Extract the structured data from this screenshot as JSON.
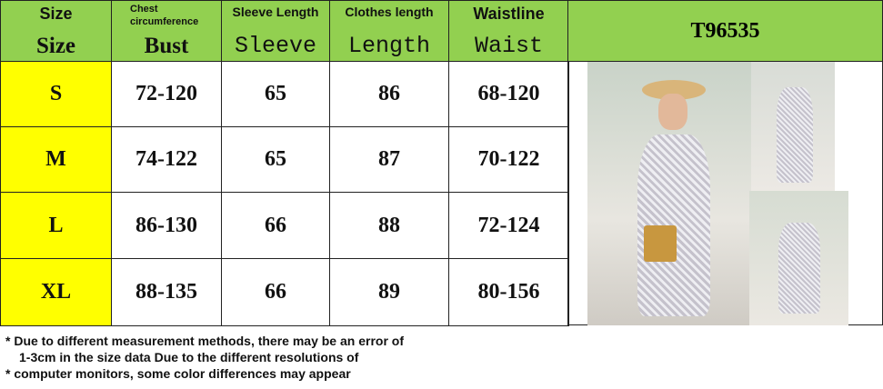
{
  "header": {
    "columns": [
      {
        "en": "Size",
        "label": "Size"
      },
      {
        "en": "Chest circumference",
        "label": "Bust"
      },
      {
        "en": "Sleeve Length",
        "label": "Sleeve"
      },
      {
        "en": "Clothes length",
        "label": "Length"
      },
      {
        "en": "Waistline",
        "label": "Waist"
      }
    ],
    "product_code": "T96535"
  },
  "rows": [
    {
      "size": "S",
      "bust": "72-120",
      "sleeve": "65",
      "length": "86",
      "waist": "68-120"
    },
    {
      "size": "M",
      "bust": "74-122",
      "sleeve": "65",
      "length": "87",
      "waist": "70-122"
    },
    {
      "size": "L",
      "bust": "86-130",
      "sleeve": "66",
      "length": "88",
      "waist": "72-124"
    },
    {
      "size": "XL",
      "bust": "88-135",
      "sleeve": "66",
      "length": "89",
      "waist": "80-156"
    }
  ],
  "notes": {
    "bullet": "*",
    "line1": "Due to different measurement methods, there may be an error of",
    "line2": "1-3cm in the size data Due to the different resolutions of",
    "line3": "computer monitors, some color differences may appear"
  },
  "colors": {
    "header": "#92d050",
    "size_col": "#ffff00"
  }
}
